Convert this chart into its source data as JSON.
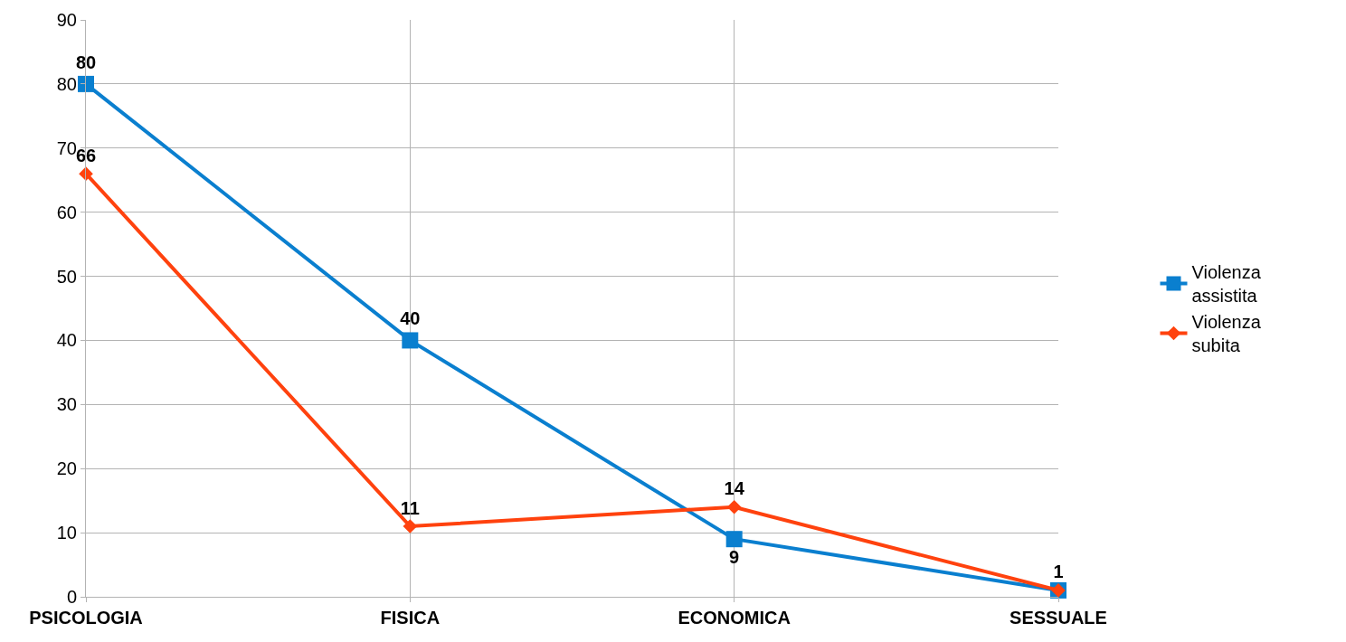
{
  "chart_data": {
    "type": "line",
    "categories": [
      "PSICOLOGIA",
      "FISICA",
      "ECONOMICA",
      "SESSUALE"
    ],
    "series": [
      {
        "name": "Violenza assistita",
        "color": "#0a7fcf",
        "marker": "square",
        "values": [
          80,
          40,
          9,
          1
        ],
        "value_labels": [
          "80",
          "40",
          "9",
          null
        ]
      },
      {
        "name": "Violenza subita",
        "color": "#ff420e",
        "marker": "diamond",
        "values": [
          66,
          11,
          14,
          1
        ],
        "value_labels": [
          "66",
          "11",
          "14",
          "1"
        ]
      }
    ],
    "ylim": [
      0,
      90
    ],
    "yticks": [
      0,
      10,
      20,
      30,
      40,
      50,
      60,
      70,
      80,
      90
    ],
    "grid": true,
    "legend": "right",
    "line_style": "solid"
  }
}
